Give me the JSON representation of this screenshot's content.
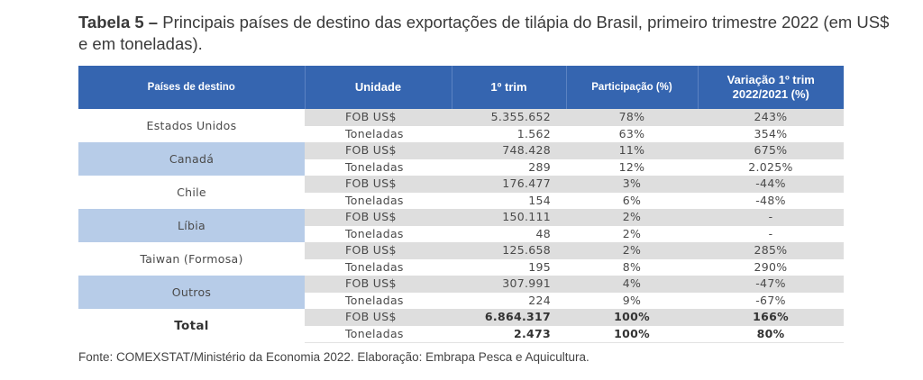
{
  "title": {
    "label": "Tabela 5 –",
    "text": " Principais países de destino das exportações de tilápia do Brasil, primeiro trimestre 2022 (em US$ e em toneladas)."
  },
  "table": {
    "headers": [
      "Países de destino",
      "Unidade",
      "1º trim",
      "Participação (%)",
      "Variação 1º trim\n2022/2021 (%)"
    ],
    "header_variacao_line1": "Variação 1º trim",
    "header_variacao_line2": "2022/2021 (%)",
    "groups": [
      {
        "country": "Estados Unidos",
        "rows": [
          {
            "unit": "FOB US$",
            "value": "5.355.652",
            "share": "78%",
            "variation": "243%"
          },
          {
            "unit": "Toneladas",
            "value": "1.562",
            "share": "63%",
            "variation": "354%"
          }
        ]
      },
      {
        "country": "Canadá",
        "rows": [
          {
            "unit": "FOB US$",
            "value": "748.428",
            "share": "11%",
            "variation": "675%"
          },
          {
            "unit": "Toneladas",
            "value": "289",
            "share": "12%",
            "variation": "2.025%"
          }
        ]
      },
      {
        "country": "Chile",
        "rows": [
          {
            "unit": "FOB US$",
            "value": "176.477",
            "share": "3%",
            "variation": "-44%"
          },
          {
            "unit": "Toneladas",
            "value": "154",
            "share": "6%",
            "variation": "-48%"
          }
        ]
      },
      {
        "country": "Líbia",
        "rows": [
          {
            "unit": "FOB US$",
            "value": "150.111",
            "share": "2%",
            "variation": "-"
          },
          {
            "unit": "Toneladas",
            "value": "48",
            "share": "2%",
            "variation": "-"
          }
        ]
      },
      {
        "country": "Taiwan (Formosa)",
        "rows": [
          {
            "unit": "FOB US$",
            "value": "125.658",
            "share": "2%",
            "variation": "285%"
          },
          {
            "unit": "Toneladas",
            "value": "195",
            "share": "8%",
            "variation": "290%"
          }
        ]
      },
      {
        "country": "Outros",
        "rows": [
          {
            "unit": "FOB US$",
            "value": "307.991",
            "share": "4%",
            "variation": "-47%"
          },
          {
            "unit": "Toneladas",
            "value": "224",
            "share": "9%",
            "variation": "-67%"
          }
        ]
      },
      {
        "country": "Total",
        "rows": [
          {
            "unit": "FOB US$",
            "value": "6.864.317",
            "share": "100%",
            "variation": "166%"
          },
          {
            "unit": "Toneladas",
            "value": "2.473",
            "share": "100%",
            "variation": "80%"
          }
        ]
      }
    ]
  },
  "colors": {
    "header_bg": "#3565b0",
    "country_highlight": "#b7cce8",
    "fob_row_bg": "#dedede"
  },
  "source": "Fonte: COMEXSTAT/Ministério da Economia 2022. Elaboração: Embrapa Pesca e Aquicultura."
}
